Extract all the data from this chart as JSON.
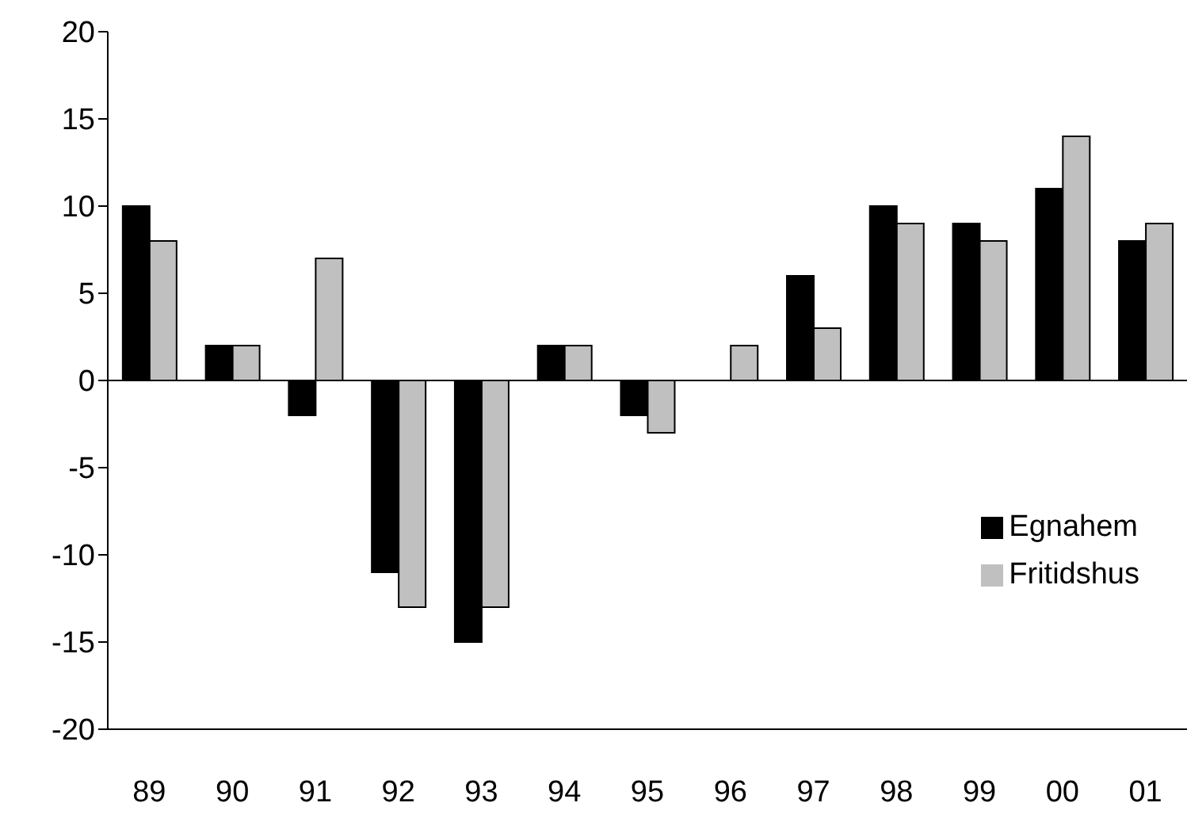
{
  "chart_data": {
    "type": "bar",
    "categories": [
      "89",
      "90",
      "91",
      "92",
      "93",
      "94",
      "95",
      "96",
      "97",
      "98",
      "99",
      "00",
      "01"
    ],
    "series": [
      {
        "name": "Egnahem",
        "color": "#000000",
        "values": [
          10,
          2,
          -2,
          -11,
          -15,
          2,
          -2,
          0,
          6,
          10,
          9,
          11,
          8
        ]
      },
      {
        "name": "Fritidshus",
        "color": "#c0c0c0",
        "values": [
          8,
          2,
          7,
          -13,
          -13,
          2,
          -3,
          2,
          3,
          9,
          8,
          14,
          9
        ]
      }
    ],
    "ylim": [
      -20,
      20
    ],
    "yticks": [
      -20,
      -15,
      -10,
      -5,
      0,
      5,
      10,
      15,
      20
    ],
    "legend": "bottom right"
  }
}
